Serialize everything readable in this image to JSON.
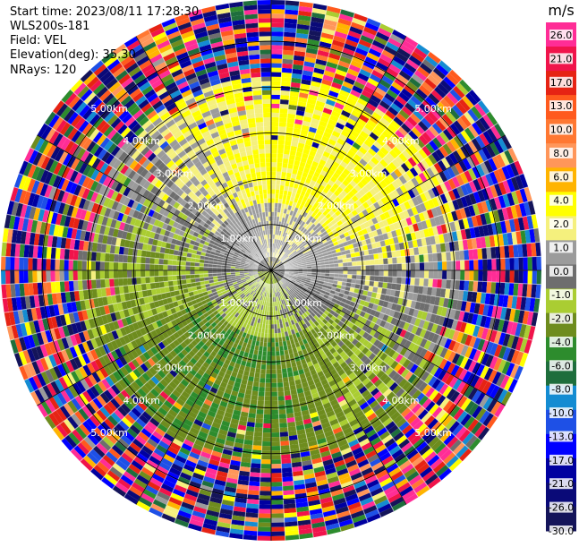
{
  "info": {
    "start_time": "Start time: 2023/08/11 17:28:30",
    "instrument": "WLS200s-181",
    "field": "Field: VEL",
    "elevation": "Elevation(deg): 35.30",
    "nrays": "NRays: 120"
  },
  "chart_data": {
    "type": "ppi",
    "field": "VEL",
    "n_rays": 120,
    "range_unit": "km",
    "range_rings": [
      {
        "km": 1.0,
        "label": "1.00km"
      },
      {
        "km": 2.0,
        "label": "2.00km"
      },
      {
        "km": 3.0,
        "label": "3.00km"
      },
      {
        "km": 4.0,
        "label": "4.00km"
      },
      {
        "km": 5.0,
        "label": "5.00km"
      }
    ],
    "max_range_km": 5.9,
    "spokes_deg": [
      0,
      30,
      60,
      90,
      120,
      150,
      180,
      210,
      240,
      270,
      300,
      330
    ],
    "colorbar": {
      "unit": "m/s",
      "ticks": [
        "26.0",
        "21.0",
        "17.0",
        "13.0",
        "10.0",
        "8.0",
        "6.0",
        "4.0",
        "2.0",
        "1.0",
        "0.0",
        "-1.0",
        "-2.0",
        "-4.0",
        "-6.0",
        "-8.0",
        "-10.0",
        "-13.0",
        "-17.0",
        "-21.0",
        "-26.0",
        "-30.0"
      ],
      "bands": [
        {
          "min": 21,
          "max": 26,
          "color": "#ff2d96"
        },
        {
          "min": 17,
          "max": 21,
          "color": "#f0144b"
        },
        {
          "min": 13,
          "max": 17,
          "color": "#e62314"
        },
        {
          "min": 10,
          "max": 13,
          "color": "#ff5a1e"
        },
        {
          "min": 8,
          "max": 10,
          "color": "#ff7832"
        },
        {
          "min": 6,
          "max": 8,
          "color": "#ff965a"
        },
        {
          "min": 4,
          "max": 6,
          "color": "#ffb400"
        },
        {
          "min": 2,
          "max": 4,
          "color": "#ffff00"
        },
        {
          "min": 1,
          "max": 2,
          "color": "#f5f07d"
        },
        {
          "min": 0,
          "max": 1,
          "color": "#9b9b9b"
        },
        {
          "min": -1,
          "max": 0,
          "color": "#6e6e6e"
        },
        {
          "min": -2,
          "max": -1,
          "color": "#aacd32"
        },
        {
          "min": -4,
          "max": -2,
          "color": "#6e8c1e"
        },
        {
          "min": -6,
          "max": -4,
          "color": "#2d8c2d"
        },
        {
          "min": -8,
          "max": -6,
          "color": "#1e6e3c"
        },
        {
          "min": -10,
          "max": -8,
          "color": "#148cd2"
        },
        {
          "min": -13,
          "max": -10,
          "color": "#1e50e6"
        },
        {
          "min": -17,
          "max": -13,
          "color": "#0000ff"
        },
        {
          "min": -21,
          "max": -17,
          "color": "#0000a0"
        },
        {
          "min": -26,
          "max": -21,
          "color": "#0a0a78"
        },
        {
          "min": -30,
          "max": -26,
          "color": "#14145a"
        }
      ]
    }
  }
}
